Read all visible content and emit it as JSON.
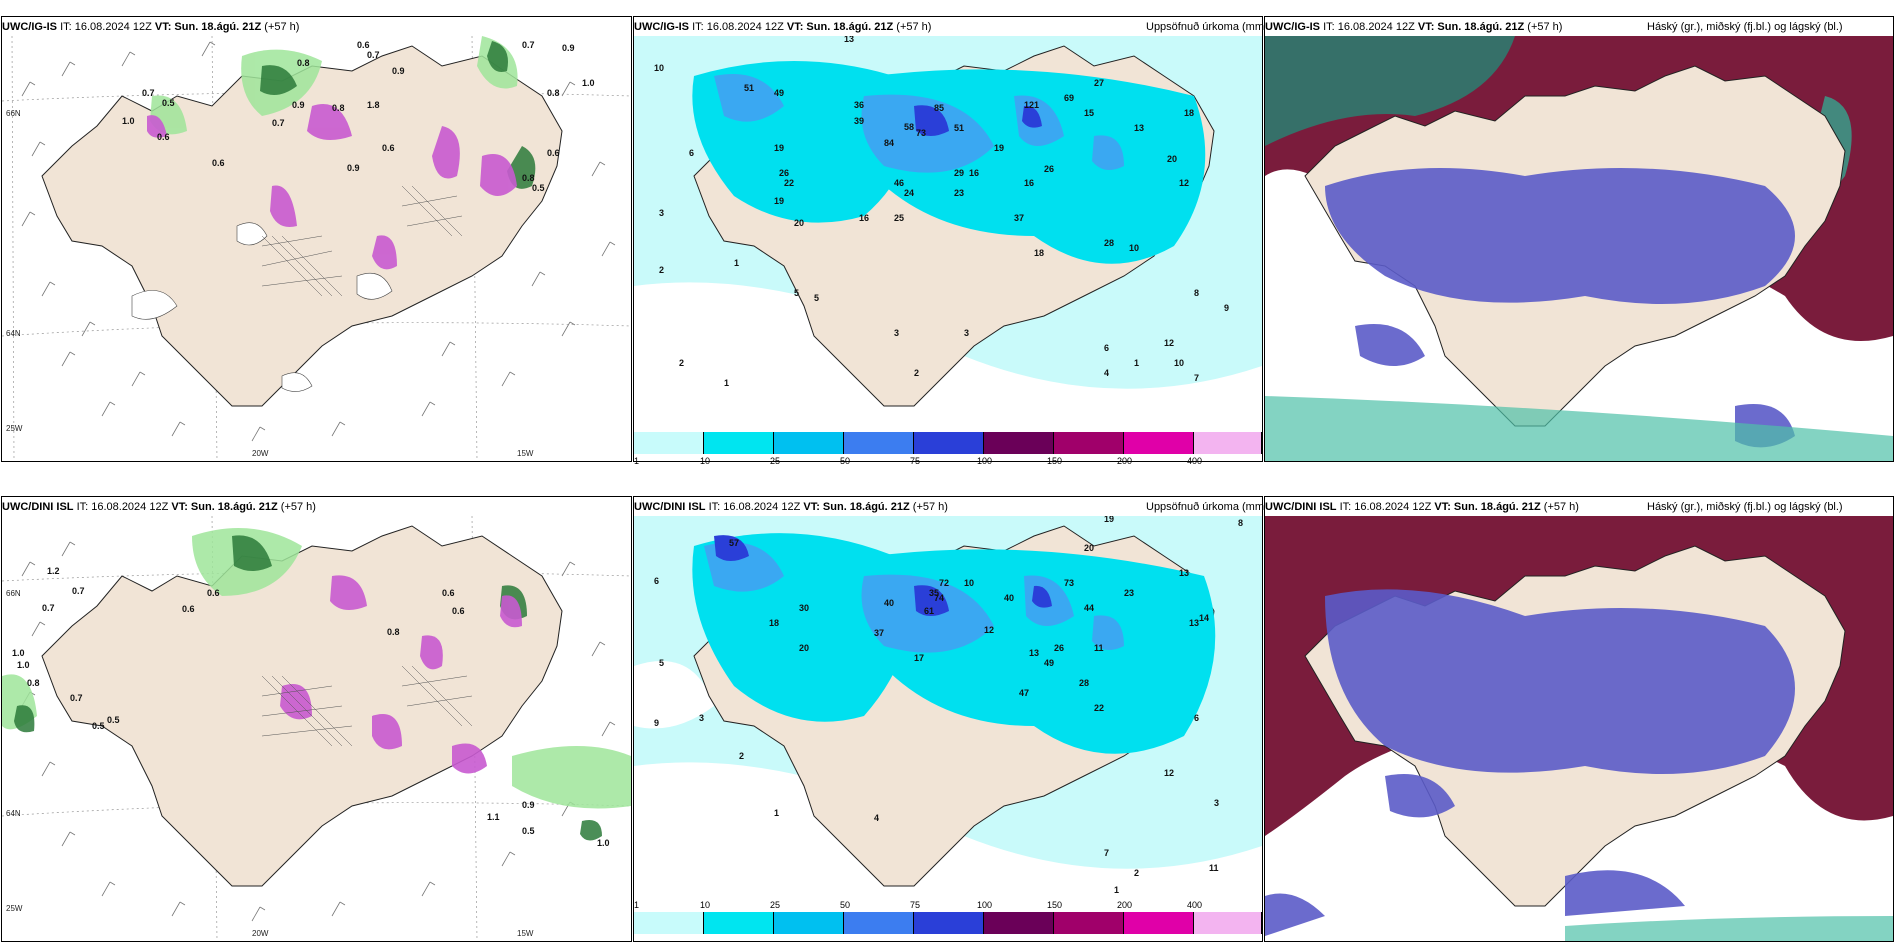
{
  "panels": [
    {
      "id": "ig-wind",
      "model": "UWC/IG-IS",
      "it": "IT: 16.08.2024 12Z",
      "vt": "VT: Sun. 18.ágú. 21Z",
      "lead": "(+57 h)",
      "right": ""
    },
    {
      "id": "ig-precip",
      "model": "UWC/IG-IS",
      "it": "IT: 16.08.2024 12Z",
      "vt": "VT: Sun. 18.ágú. 21Z",
      "lead": "(+57 h)",
      "right": "Uppsöfnuð úrkoma (mm)"
    },
    {
      "id": "ig-cloud",
      "model": "UWC/IG-IS",
      "it": "IT: 16.08.2024 12Z",
      "vt": "VT: Sun. 18.ágú. 21Z",
      "lead": "(+57 h)",
      "right": "Háský (gr.), miðský (fj.bl.) og lágský (bl.)"
    },
    {
      "id": "dini-wind",
      "model": "UWC/DINI ISL",
      "it": "IT: 16.08.2024 12Z",
      "vt": "VT: Sun. 18.ágú. 21Z",
      "lead": "(+57 h)",
      "right": ""
    },
    {
      "id": "dini-precip",
      "model": "UWC/DINI ISL",
      "it": "IT: 16.08.2024 12Z",
      "vt": "VT: Sun. 18.ágú. 21Z",
      "lead": "(+57 h)",
      "right": "Uppsöfnuð úrkoma (mm)"
    },
    {
      "id": "dini-cloud",
      "model": "UWC/DINI ISL",
      "it": "IT: 16.08.2024 12Z",
      "vt": "VT: Sun. 18.ágú. 21Z",
      "lead": "(+57 h)",
      "right": "Háský (gr.), miðský (fj.bl.) og lágský (bl.)"
    }
  ],
  "coords": {
    "lon_20": "20W",
    "lon_15": "15W",
    "lon_25": "25W",
    "lat_66": "66N",
    "lat_64": "64N"
  },
  "colorbar": {
    "ticks": [
      "1",
      "10",
      "25",
      "50",
      "75",
      "100",
      "150",
      "200",
      "400"
    ],
    "colors": [
      "#c8fbfb",
      "#00e5f0",
      "#00c0f0",
      "#3c7df0",
      "#2a3fd8",
      "#6a0058",
      "#a0006a",
      "#e000a8",
      "#f3b4f0"
    ]
  },
  "colors": {
    "land": "#f1e4d6",
    "sea_precip": "#c9fafa",
    "high_cloud": "#7a1c3c",
    "mid_cloud": "#5b5bc8",
    "low_cloud": "#3a9c8a"
  },
  "labels": {
    "ig_wind": [
      "0.8",
      "0.6",
      "0.7",
      "0.9",
      "0.6",
      "1.0",
      "0.8",
      "0.9",
      "0.7",
      "1.0",
      "0.8",
      "0.6",
      "0.9",
      "0.5",
      "0.7",
      "0.8",
      "1.8",
      "0.9",
      "0.6",
      "0.7",
      "0.5",
      "0.6"
    ],
    "ig_precip": [
      "13",
      "10",
      "51",
      "49",
      "36",
      "39",
      "58",
      "73",
      "85",
      "51",
      "121",
      "69",
      "27",
      "15",
      "19",
      "26",
      "13",
      "20",
      "12",
      "16",
      "19",
      "84",
      "46",
      "24",
      "23",
      "22",
      "19",
      "20",
      "26",
      "29",
      "25",
      "16",
      "16",
      "18",
      "37",
      "28",
      "10",
      "18",
      "5",
      "2",
      "1",
      "3",
      "6",
      "2",
      "5",
      "3",
      "1",
      "12",
      "8",
      "9",
      "10",
      "6",
      "4",
      "7",
      "3",
      "2",
      "1"
    ],
    "ig_cloud": [],
    "dini_wind": [
      "1.2",
      "0.7",
      "1.0",
      "0.6",
      "0.8",
      "1.0",
      "0.7",
      "0.5",
      "0.6",
      "0.8",
      "0.6",
      "1.1",
      "0.9",
      "0.5",
      "1.0",
      "0.7",
      "0.6",
      "0.5"
    ],
    "dini_precip": [
      "19",
      "8",
      "6",
      "57",
      "61",
      "35",
      "40",
      "72",
      "74",
      "37",
      "40",
      "73",
      "44",
      "20",
      "13",
      "23",
      "18",
      "17",
      "30",
      "26",
      "12",
      "13",
      "49",
      "47",
      "28",
      "22",
      "20",
      "10",
      "13",
      "11",
      "9",
      "5",
      "3",
      "2",
      "1",
      "4",
      "6",
      "3",
      "12",
      "14",
      "2",
      "1",
      "7",
      "11"
    ],
    "dini_cloud": []
  }
}
